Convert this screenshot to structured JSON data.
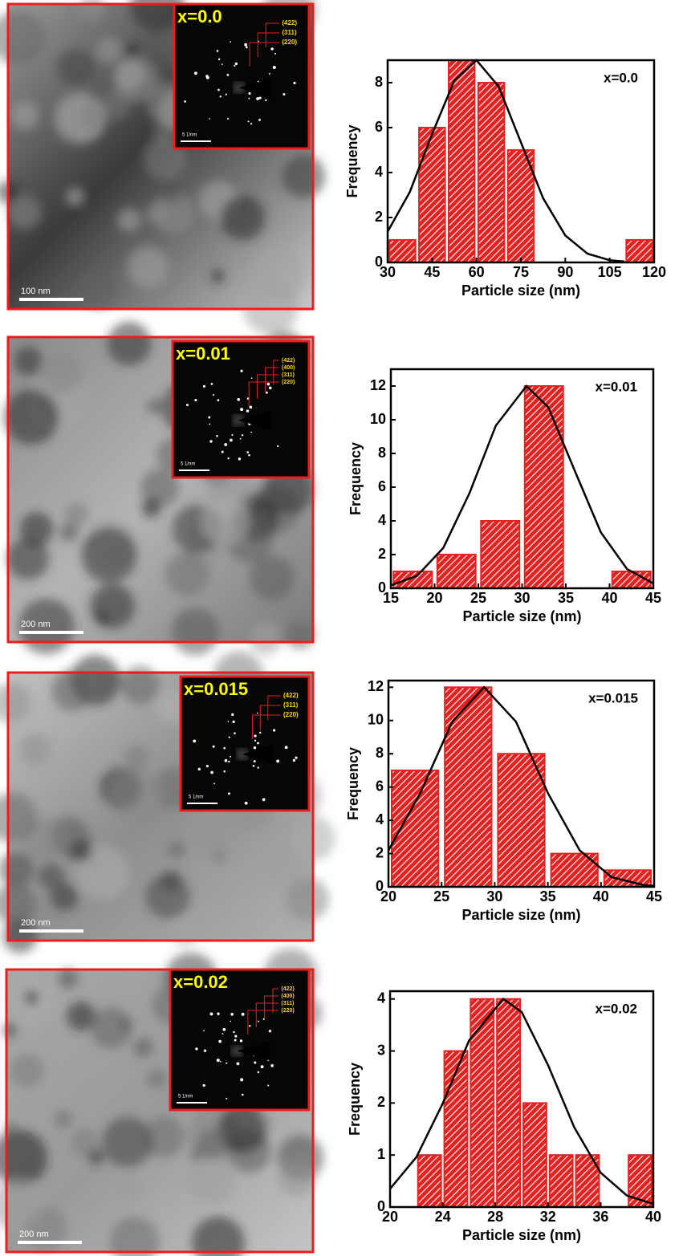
{
  "chart_data": [
    {
      "type": "histogram",
      "annotation": "x=0.0",
      "xlabel": "Particle size (nm)",
      "ylabel": "Frequency",
      "color": "#e52222",
      "bins": [
        30,
        40,
        50,
        60,
        70,
        80,
        90,
        100,
        110,
        120
      ],
      "values": [
        1,
        6,
        9,
        8,
        5,
        0,
        0,
        0,
        1
      ],
      "curve": {
        "x": [
          30,
          37.5,
          45,
          52.5,
          60,
          67.5,
          75,
          82.5,
          90,
          97.5,
          105,
          110
        ],
        "y": [
          1.37,
          3.14,
          5.71,
          8.09,
          9.0,
          7.83,
          5.35,
          2.86,
          1.2,
          0.39,
          0.1,
          0.04
        ]
      },
      "xlim": [
        30,
        120
      ],
      "xticks": [
        30,
        45,
        60,
        75,
        90,
        105,
        120
      ],
      "ylim": [
        0,
        9
      ],
      "yticks": [
        0,
        2,
        4,
        6,
        8
      ]
    },
    {
      "type": "histogram",
      "annotation": "x=0.01",
      "xlabel": "Particle size (nm)",
      "ylabel": "Frequency",
      "color": "#e52222",
      "bins": [
        15,
        20,
        25,
        30,
        35,
        40,
        45
      ],
      "values": [
        1,
        2,
        4,
        12,
        0,
        1
      ],
      "curve": {
        "x": [
          15,
          18,
          21,
          24,
          27,
          30.5,
          33,
          36,
          39,
          42,
          45
        ],
        "y": [
          0.17,
          0.74,
          2.4,
          5.66,
          9.65,
          12,
          10.74,
          7.0,
          3.32,
          1.14,
          0.29
        ]
      },
      "xlim": [
        15,
        45
      ],
      "xticks": [
        15,
        20,
        25,
        30,
        35,
        40,
        45
      ],
      "ylim": [
        0,
        13
      ],
      "yticks": [
        0,
        2,
        4,
        6,
        8,
        10,
        12
      ]
    },
    {
      "type": "histogram",
      "annotation": "x=0.015",
      "xlabel": "Particle size (nm)",
      "ylabel": "Frequency",
      "color": "#e52222",
      "bins": [
        20,
        25,
        30,
        35,
        40,
        45
      ],
      "values": [
        7,
        12,
        8,
        2,
        1
      ],
      "curve": {
        "x": [
          20,
          23,
          26,
          29,
          32,
          35,
          38,
          41,
          44,
          45
        ],
        "y": [
          2.19,
          5.64,
          9.93,
          12,
          9.93,
          5.64,
          2.19,
          0.58,
          0.11,
          0.06
        ]
      },
      "xlim": [
        20,
        45
      ],
      "xticks": [
        20,
        25,
        30,
        35,
        40,
        45
      ],
      "ylim": [
        0,
        12.4
      ],
      "yticks": [
        0,
        2,
        4,
        6,
        8,
        10,
        12
      ]
    },
    {
      "type": "histogram",
      "annotation": "x=0.02",
      "xlabel": "Particle size (nm)",
      "ylabel": "Frequency",
      "color": "#e52222",
      "bins": [
        22,
        24,
        26,
        28,
        30,
        32,
        34,
        36,
        38,
        40
      ],
      "values": [
        1,
        3,
        4,
        4,
        2,
        1,
        1,
        0,
        1
      ],
      "curve": {
        "x": [
          20,
          22,
          24,
          26,
          28.6,
          30,
          32,
          34,
          36,
          38,
          40
        ],
        "y": [
          0.35,
          0.96,
          1.99,
          3.2,
          4,
          3.75,
          2.73,
          1.53,
          0.66,
          0.22,
          0.06
        ]
      },
      "xlim": [
        20,
        40
      ],
      "xticks": [
        20,
        24,
        28,
        32,
        36,
        40
      ],
      "ylim": [
        0,
        4.15
      ],
      "yticks": [
        0,
        1,
        2,
        3,
        4
      ]
    }
  ],
  "images": [
    {
      "label": "x=0.0",
      "planes": [
        "(422)",
        "(311)",
        "(220)"
      ],
      "scale_bar": "100 nm",
      "inset_scale": "5 1/nm"
    },
    {
      "label": "x=0.01",
      "planes": [
        "(422)",
        "(400)",
        "(311)",
        "(220)"
      ],
      "scale_bar": "200 nm",
      "inset_scale": "5 1/nm"
    },
    {
      "label": "x=0.015",
      "planes": [
        "(422)",
        "(311)",
        "(220)"
      ],
      "scale_bar": "200 nm",
      "inset_scale": "5 1/nm"
    },
    {
      "label": "x=0.02",
      "planes": [
        "(422)",
        "(400)",
        "(311)",
        "(220)"
      ],
      "scale_bar": "200 nm",
      "inset_scale": "5 1/nm"
    }
  ]
}
